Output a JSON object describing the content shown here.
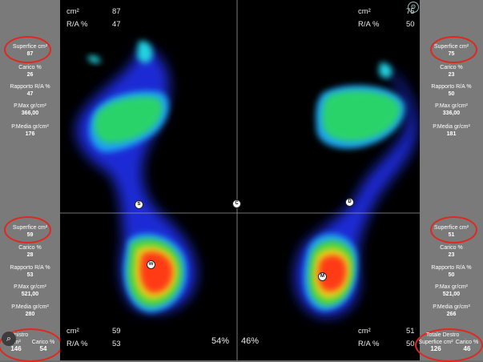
{
  "top": {
    "left_area": {
      "unit": "cm²",
      "value": "87"
    },
    "left_ra": {
      "unit": "R/A %",
      "value": "47"
    },
    "right_area": {
      "unit": "cm²",
      "value": "75"
    },
    "right_ra": {
      "unit": "R/A %",
      "value": "50"
    }
  },
  "bottom": {
    "left_area": {
      "unit": "cm²",
      "value": "59"
    },
    "left_ra": {
      "unit": "R/A %",
      "value": "53"
    },
    "right_area": {
      "unit": "cm²",
      "value": "51"
    },
    "right_ra": {
      "unit": "R/A %",
      "value": "50"
    }
  },
  "percent_left": "54%",
  "percent_right": "46%",
  "markers": {
    "left_heel": "m",
    "right_heel": "M",
    "left_arch": "S",
    "center": "C",
    "right_arch": "D"
  },
  "left_forefoot": [
    {
      "label": "Superfice cm²",
      "value": "87"
    },
    {
      "label": "Carico %",
      "value": "26"
    },
    {
      "label": "Rapporto R/A %",
      "value": "47"
    },
    {
      "label": "P.Max gr/cm²",
      "value": "366,00"
    },
    {
      "label": "P.Media gr/cm²",
      "value": "176"
    }
  ],
  "left_heel": [
    {
      "label": "Superfice cm²",
      "value": "59"
    },
    {
      "label": "Carico %",
      "value": "28"
    },
    {
      "label": "Rapporto R/A %",
      "value": "53"
    },
    {
      "label": "P.Max gr/cm²",
      "value": "521,00"
    },
    {
      "label": "P.Media gr/cm²",
      "value": "280"
    }
  ],
  "right_forefoot": [
    {
      "label": "Superfice cm²",
      "value": "75"
    },
    {
      "label": "Carico %",
      "value": "23"
    },
    {
      "label": "Rapporto R/A %",
      "value": "50"
    },
    {
      "label": "P.Max gr/cm²",
      "value": "336,00"
    },
    {
      "label": "P.Media gr/cm²",
      "value": "181"
    }
  ],
  "right_heel": [
    {
      "label": "Superfice cm²",
      "value": "51"
    },
    {
      "label": "Carico %",
      "value": "23"
    },
    {
      "label": "Rapporto R/A %",
      "value": "50"
    },
    {
      "label": "P.Max gr/cm²",
      "value": "521,00"
    },
    {
      "label": "P.Media gr/cm²",
      "value": "266"
    }
  ],
  "totals_left": {
    "title": "...Sinistro",
    "area_label": "cm²",
    "area": "146",
    "load_label": "Carico %",
    "load": "54"
  },
  "totals_right": {
    "title": "Totale Destro",
    "area_label": "Superfice cm²",
    "area": "126",
    "load_label": "Carico %",
    "load": "46"
  },
  "colors": {
    "highlight_ring": "#e0281e",
    "map_bg": "#000000",
    "panel_bg": "#7a7a7a"
  }
}
